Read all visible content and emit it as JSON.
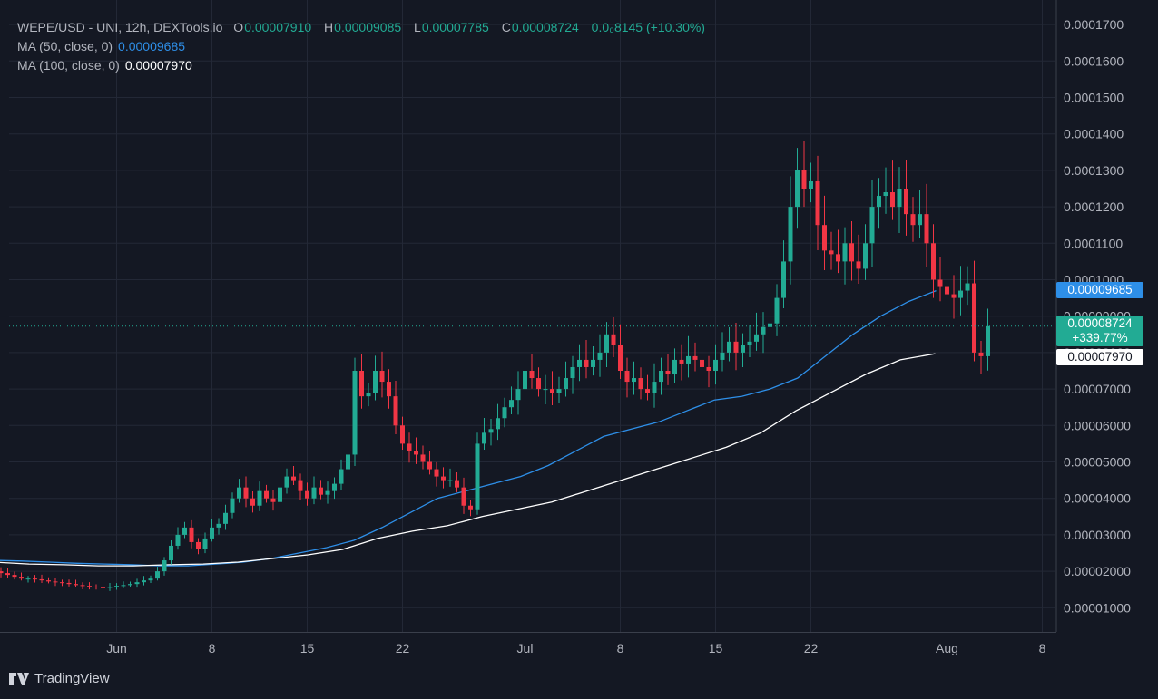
{
  "legend": {
    "symbol": "WEPE/USD - UNI, 12h, DEXTools.io",
    "open_key": "O",
    "open": "0.00007910",
    "high_key": "H",
    "high": "0.00009085",
    "low_key": "L",
    "low": "0.00007785",
    "close_key": "C",
    "close": "0.00008724",
    "change": "0.0₀8145 (+10.30%)",
    "ma50_label": "MA (50, close, 0)",
    "ma50_value": "0.00009685",
    "ma100_label": "MA (100, close, 0)",
    "ma100_value": "0.00007970"
  },
  "price_tags": {
    "ma50": "0.00009685",
    "last": "0.00008724",
    "last_change": "+339.77%",
    "ma100": "0.00007970"
  },
  "colors": {
    "background": "#141823",
    "grid": "#232836",
    "up": "#22ab94",
    "down": "#f23645",
    "ma50": "#2e8fe8",
    "ma100": "#ffffff",
    "axis_text": "#b2b5be"
  },
  "branding": {
    "name": "TradingView",
    "icon": "tradingview-logo-icon"
  },
  "chart_data": {
    "type": "candlestick",
    "title": "WEPE/USD - UNI, 12h, DEXTools.io",
    "xlabel": "",
    "ylabel": "",
    "ylim": [
      0,
      0.00017
    ],
    "xlim": [
      "2024-05-23",
      "2024-08-09"
    ],
    "y_ticks": [
      "0.00001000",
      "0.00002000",
      "0.00003000",
      "0.00004000",
      "0.00005000",
      "0.00006000",
      "0.00007000",
      "0.00008000",
      "0.00009000",
      "0.0001000",
      "0.0001100",
      "0.0001200",
      "0.0001300",
      "0.0001400",
      "0.0001500",
      "0.0001600",
      "0.0001700"
    ],
    "x_ticks": [
      {
        "label": "Jun",
        "date": "2024-06-01"
      },
      {
        "label": "8",
        "date": "2024-06-08"
      },
      {
        "label": "15",
        "date": "2024-06-15"
      },
      {
        "label": "22",
        "date": "2024-06-22"
      },
      {
        "label": "Jul",
        "date": "2024-07-01"
      },
      {
        "label": "8",
        "date": "2024-07-08"
      },
      {
        "label": "15",
        "date": "2024-07-15"
      },
      {
        "label": "22",
        "date": "2024-07-22"
      },
      {
        "label": "Aug",
        "date": "2024-08-01"
      },
      {
        "label": "8",
        "date": "2024-08-08"
      }
    ],
    "grid": true,
    "last_price_line": 8.724e-05,
    "candles_start": "2024-05-23",
    "interval_hours": 12,
    "close_series": [
      2.0,
      1.95,
      1.9,
      1.85,
      1.8,
      1.8,
      1.78,
      1.75,
      1.72,
      1.7,
      1.68,
      1.65,
      1.62,
      1.6,
      1.58,
      1.56,
      1.55,
      1.57,
      1.6,
      1.62,
      1.65,
      1.7,
      1.75,
      1.8,
      2.0,
      2.3,
      2.7,
      3.0,
      3.2,
      2.8,
      2.6,
      2.9,
      3.2,
      3.3,
      3.6,
      4.0,
      4.3,
      4.0,
      3.8,
      4.2,
      4.0,
      3.9,
      4.3,
      4.6,
      4.5,
      4.2,
      4.0,
      4.3,
      4.1,
      4.2,
      4.4,
      4.8,
      5.2,
      7.5,
      6.8,
      6.9,
      7.5,
      7.2,
      6.8,
      6.0,
      5.5,
      5.3,
      5.2,
      5.0,
      4.8,
      4.6,
      4.5,
      4.5,
      4.3,
      3.8,
      3.7,
      5.5,
      5.8,
      5.9,
      6.2,
      6.5,
      6.7,
      7.0,
      7.5,
      7.3,
      7.0,
      7.0,
      6.9,
      7.0,
      7.3,
      7.6,
      7.8,
      7.6,
      7.8,
      8.0,
      8.5,
      8.2,
      7.5,
      7.2,
      7.3,
      7.0,
      6.9,
      7.2,
      7.5,
      7.4,
      7.8,
      7.7,
      7.9,
      7.8,
      7.6,
      7.5,
      7.8,
      8.0,
      8.3,
      8.0,
      8.2,
      8.3,
      8.5,
      8.7,
      8.8,
      9.5,
      10.5,
      12.0,
      13.0,
      12.5,
      12.7,
      11.5,
      10.8,
      10.7,
      10.5,
      11.0,
      10.5,
      10.3,
      11.0,
      12.0,
      12.3,
      12.4,
      12.0,
      12.5,
      11.8,
      11.5,
      11.8,
      11.0,
      10.0,
      9.8,
      9.6,
      9.5,
      9.7,
      9.9,
      8.0,
      7.9,
      8.724
    ],
    "series": [
      {
        "name": "MA (50, close, 0)",
        "last": 9.685e-05,
        "values": [
          2.3,
          2.28,
          2.25,
          2.22,
          2.2,
          2.18,
          2.15,
          2.15,
          2.2,
          2.25,
          2.35,
          2.5,
          2.65,
          2.85,
          3.2,
          3.6,
          4.0,
          4.2,
          4.4,
          4.6,
          4.9,
          5.3,
          5.7,
          5.9,
          6.1,
          6.4,
          6.7,
          6.8,
          7.0,
          7.3,
          7.9,
          8.5,
          9.0,
          9.4,
          9.7
        ]
      },
      {
        "name": "MA (100, close, 0)",
        "last": 7.97e-05,
        "values": [
          2.25,
          2.2,
          2.18,
          2.15,
          2.15,
          2.18,
          2.2,
          2.25,
          2.35,
          2.45,
          2.6,
          2.9,
          3.1,
          3.25,
          3.5,
          3.7,
          3.9,
          4.2,
          4.5,
          4.8,
          5.1,
          5.4,
          5.8,
          6.4,
          6.9,
          7.4,
          7.8,
          7.97
        ]
      }
    ],
    "ma_value_unit": "1e-5"
  }
}
